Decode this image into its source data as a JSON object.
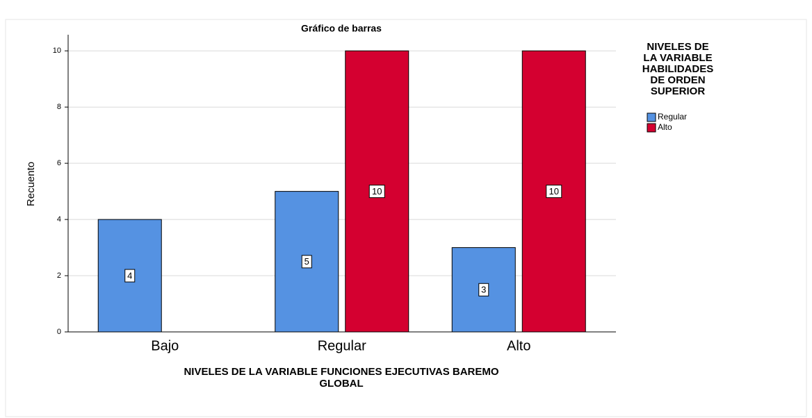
{
  "chart_data": {
    "type": "bar",
    "title": "Gráfico de barras",
    "y_label": "Recuento",
    "x_label": [
      "NIVELES DE LA VARIABLE FUNCIONES EJECUTIVAS BAREMO",
      "GLOBAL"
    ],
    "legend_title": [
      "NIVELES DE",
      "LA VARIABLE",
      "HABILIDADES",
      "DE ORDEN",
      "SUPERIOR"
    ],
    "categories": [
      "Bajo",
      "Regular",
      "Alto"
    ],
    "series": [
      {
        "name": "Regular",
        "color": "#5592e2",
        "values": [
          4,
          5,
          3
        ]
      },
      {
        "name": "Alto",
        "color": "#d40030",
        "values": [
          null,
          10,
          10
        ]
      }
    ],
    "ylim": [
      0,
      10.5
    ],
    "yticks": [
      0,
      2,
      4,
      6,
      8,
      10
    ],
    "grid": true,
    "legend": "right"
  }
}
